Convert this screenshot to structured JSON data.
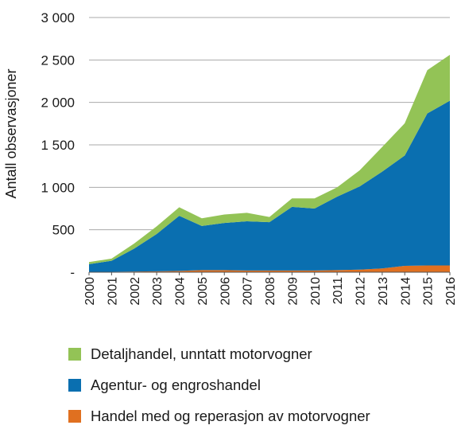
{
  "chart_data": {
    "type": "area",
    "stacked": true,
    "title": "",
    "xlabel": "",
    "ylabel": "Antall observasjoner",
    "ylim": [
      0,
      3000
    ],
    "yticks": [
      0,
      500,
      1000,
      1500,
      2000,
      2500,
      3000
    ],
    "ytick_labels": [
      "-",
      "500",
      "1 000",
      "1 500",
      "2 000",
      "2 500",
      "3 000"
    ],
    "grid": "horizontal",
    "legend_placement": "bottom",
    "x": [
      "2000",
      "2001",
      "2002",
      "2003",
      "2004",
      "2005",
      "2006",
      "2007",
      "2008",
      "2009",
      "2010",
      "2011",
      "2012",
      "2013",
      "2014",
      "2015",
      "2016"
    ],
    "series": [
      {
        "name": "Handel med og reperasjon av motorvogner",
        "color": "#e07020",
        "values": [
          5,
          5,
          8,
          10,
          15,
          25,
          25,
          20,
          20,
          20,
          20,
          25,
          30,
          45,
          75,
          80,
          80
        ]
      },
      {
        "name": "Agentur- og engroshandel",
        "color": "#0a6fb0",
        "values": [
          90,
          130,
          270,
          440,
          650,
          520,
          555,
          580,
          570,
          750,
          730,
          865,
          980,
          1140,
          1300,
          1790,
          1940
        ]
      },
      {
        "name": "Detaljhandel, unntatt motorvogner",
        "color": "#93c356",
        "values": [
          25,
          25,
          60,
          90,
          100,
          90,
          100,
          100,
          60,
          100,
          120,
          110,
          190,
          290,
          380,
          510,
          540
        ]
      }
    ]
  }
}
